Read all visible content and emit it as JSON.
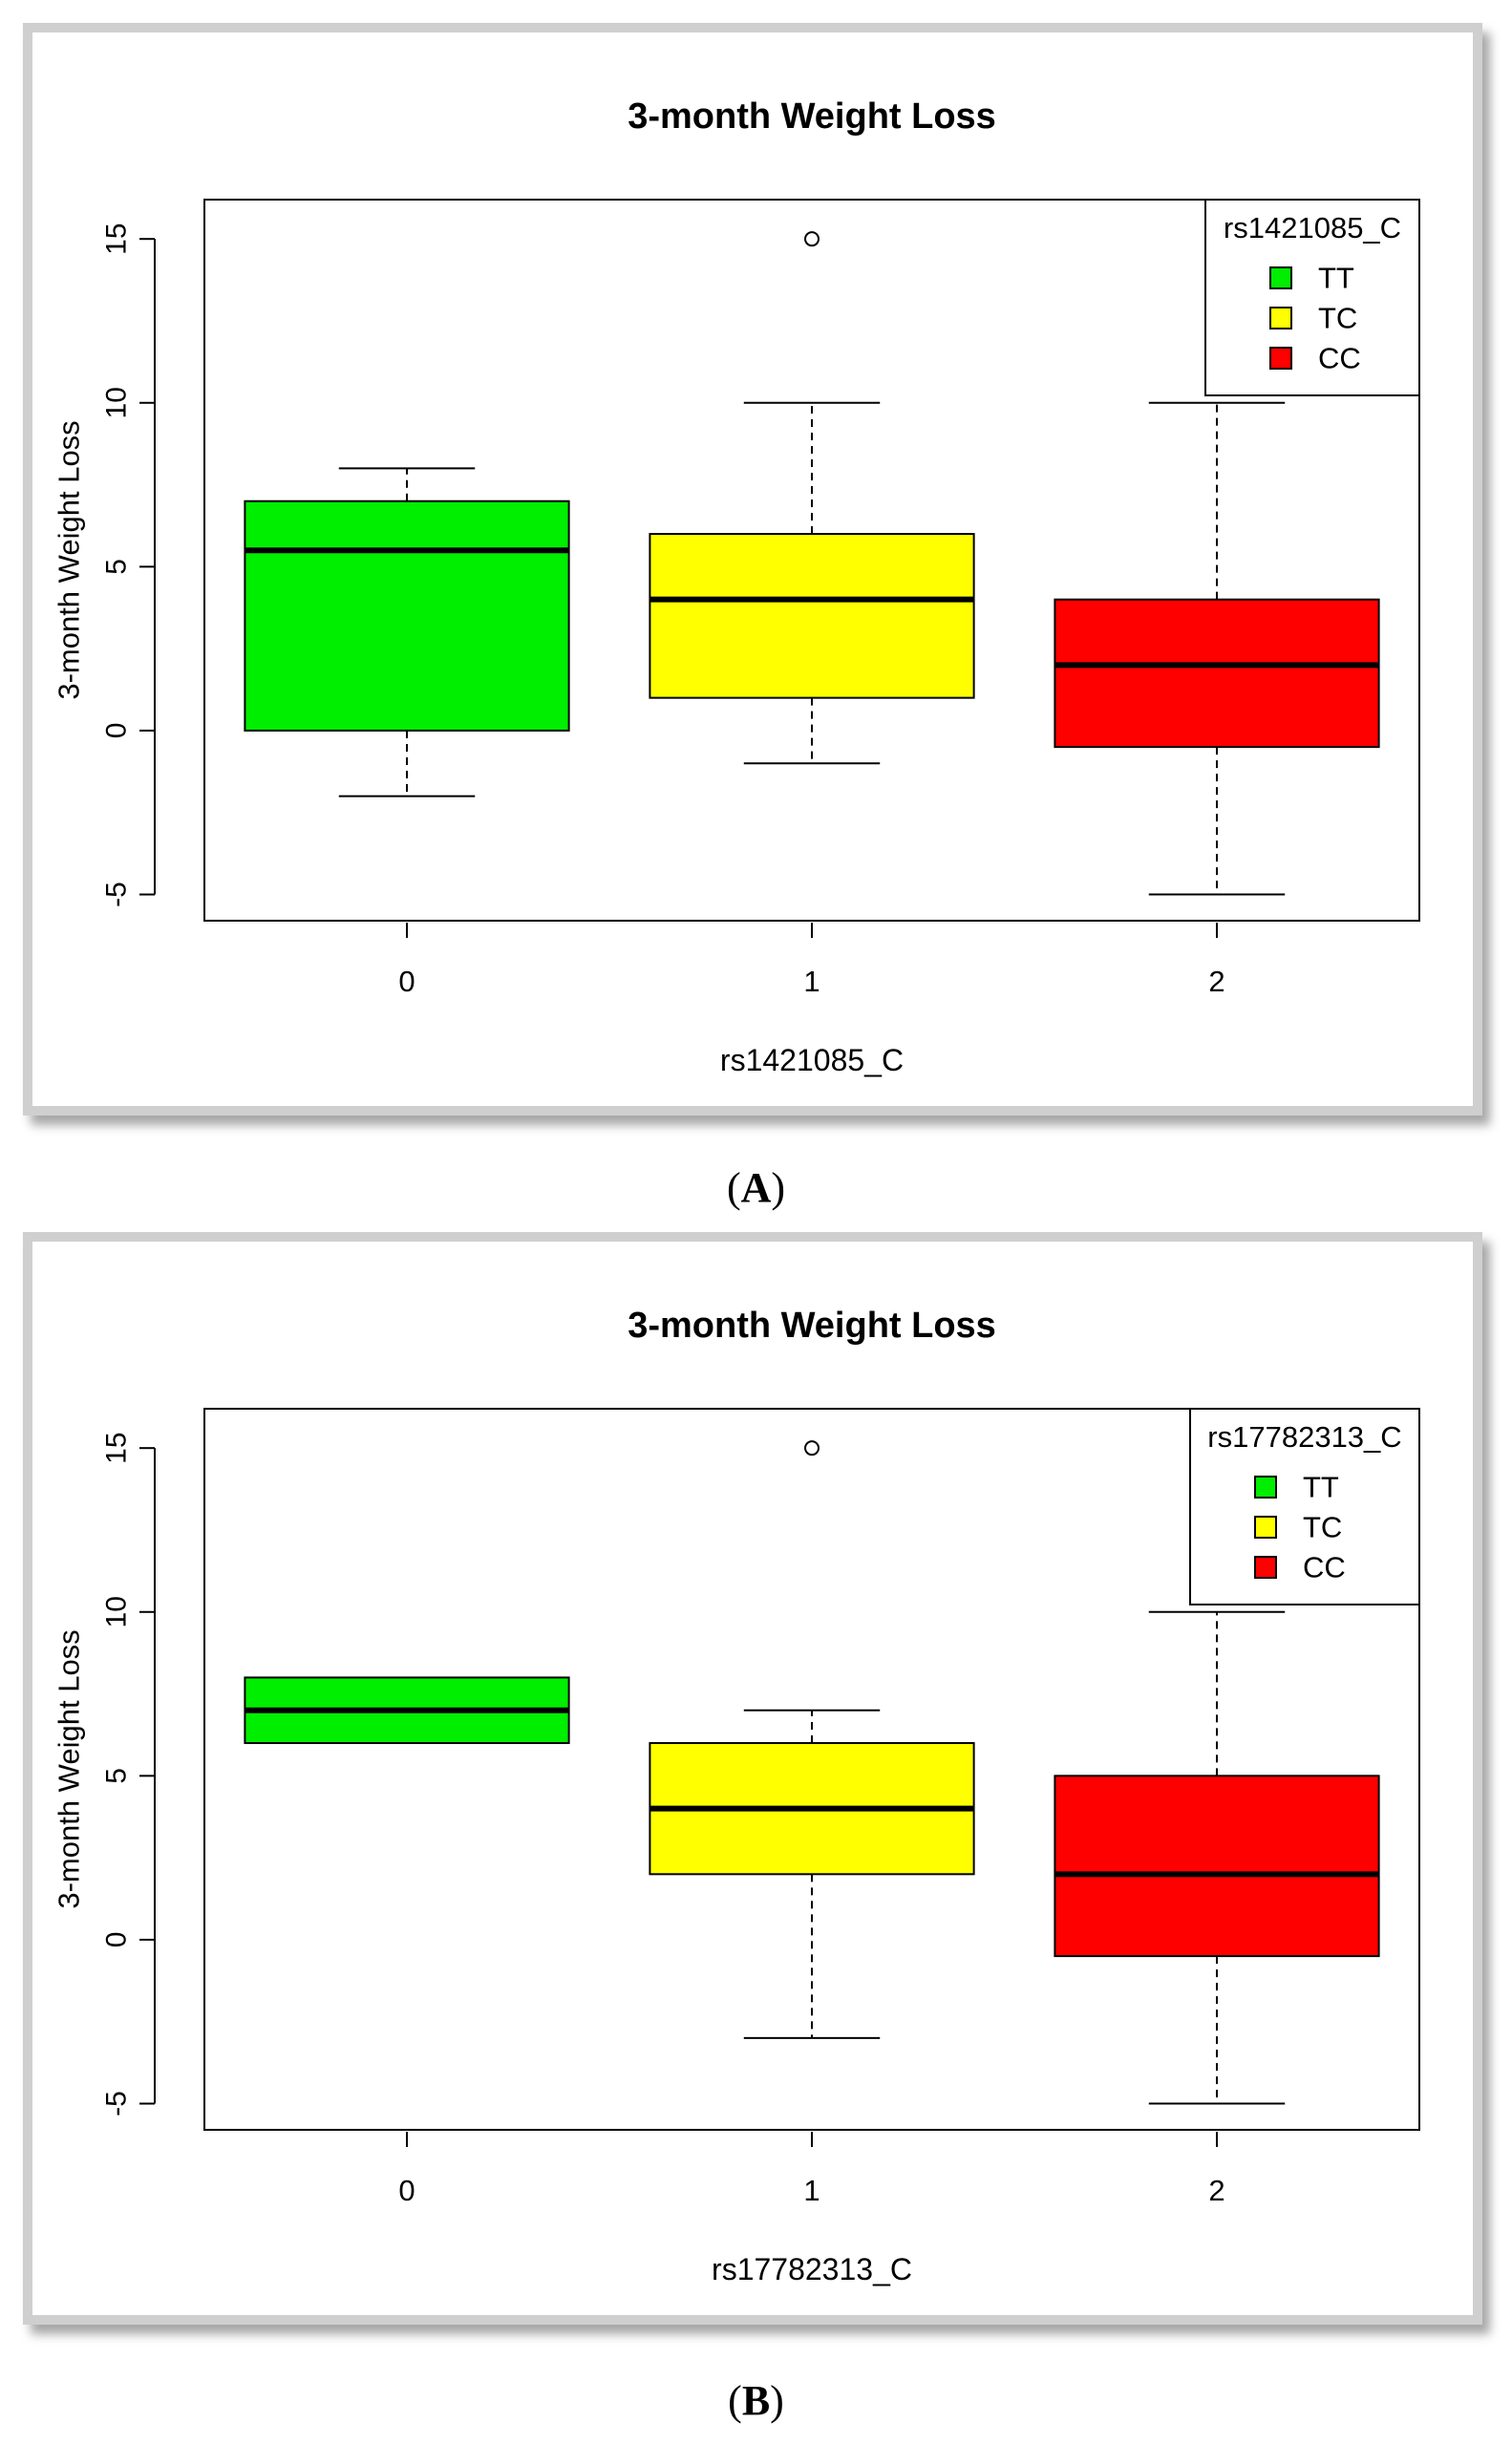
{
  "chart_data": [
    {
      "type": "boxplot",
      "panel_label": "A",
      "title": "3-month Weight Loss",
      "xlabel": "rs1421085_C",
      "ylabel": "3-month Weight Loss",
      "categories": [
        "0",
        "1",
        "2"
      ],
      "yticks": [
        "-5",
        "0",
        "5",
        "10",
        "15"
      ],
      "ylim": [
        -5.8,
        16.2
      ],
      "grid": false,
      "legend": {
        "title": "rs1421085_C",
        "position": "top-right",
        "entries": [
          "TT",
          "TC",
          "CC"
        ]
      },
      "boxes": [
        {
          "category": "0",
          "whisker_low": -2,
          "q1": 0,
          "median": 5.5,
          "q3": 7,
          "whisker_high": 8,
          "outliers": [],
          "color": "#00ee00"
        },
        {
          "category": "1",
          "whisker_low": -1,
          "q1": 1,
          "median": 4,
          "q3": 6,
          "whisker_high": 10,
          "outliers": [
            15
          ],
          "color": "#ffff00"
        },
        {
          "category": "2",
          "whisker_low": -5,
          "q1": -0.5,
          "median": 2,
          "q3": 4,
          "whisker_high": 10,
          "outliers": [],
          "color": "#ff0000"
        }
      ]
    },
    {
      "type": "boxplot",
      "panel_label": "B",
      "title": "3-month Weight Loss",
      "xlabel": "rs17782313_C",
      "ylabel": "3-month Weight Loss",
      "categories": [
        "0",
        "1",
        "2"
      ],
      "yticks": [
        "-5",
        "0",
        "5",
        "10",
        "15"
      ],
      "ylim": [
        -5.8,
        16.2
      ],
      "grid": false,
      "legend": {
        "title": "rs17782313_C",
        "position": "top-right",
        "entries": [
          "TT",
          "TC",
          "CC"
        ]
      },
      "boxes": [
        {
          "category": "0",
          "whisker_low": 6,
          "q1": 6,
          "median": 7,
          "q3": 8,
          "whisker_high": 8,
          "outliers": [],
          "color": "#00ee00"
        },
        {
          "category": "1",
          "whisker_low": -3,
          "q1": 2,
          "median": 4,
          "q3": 6,
          "whisker_high": 7,
          "outliers": [
            15
          ],
          "color": "#ffff00"
        },
        {
          "category": "2",
          "whisker_low": -5,
          "q1": -0.5,
          "median": 2,
          "q3": 5,
          "whisker_high": 10,
          "outliers": [],
          "color": "#ff0000"
        }
      ]
    }
  ]
}
